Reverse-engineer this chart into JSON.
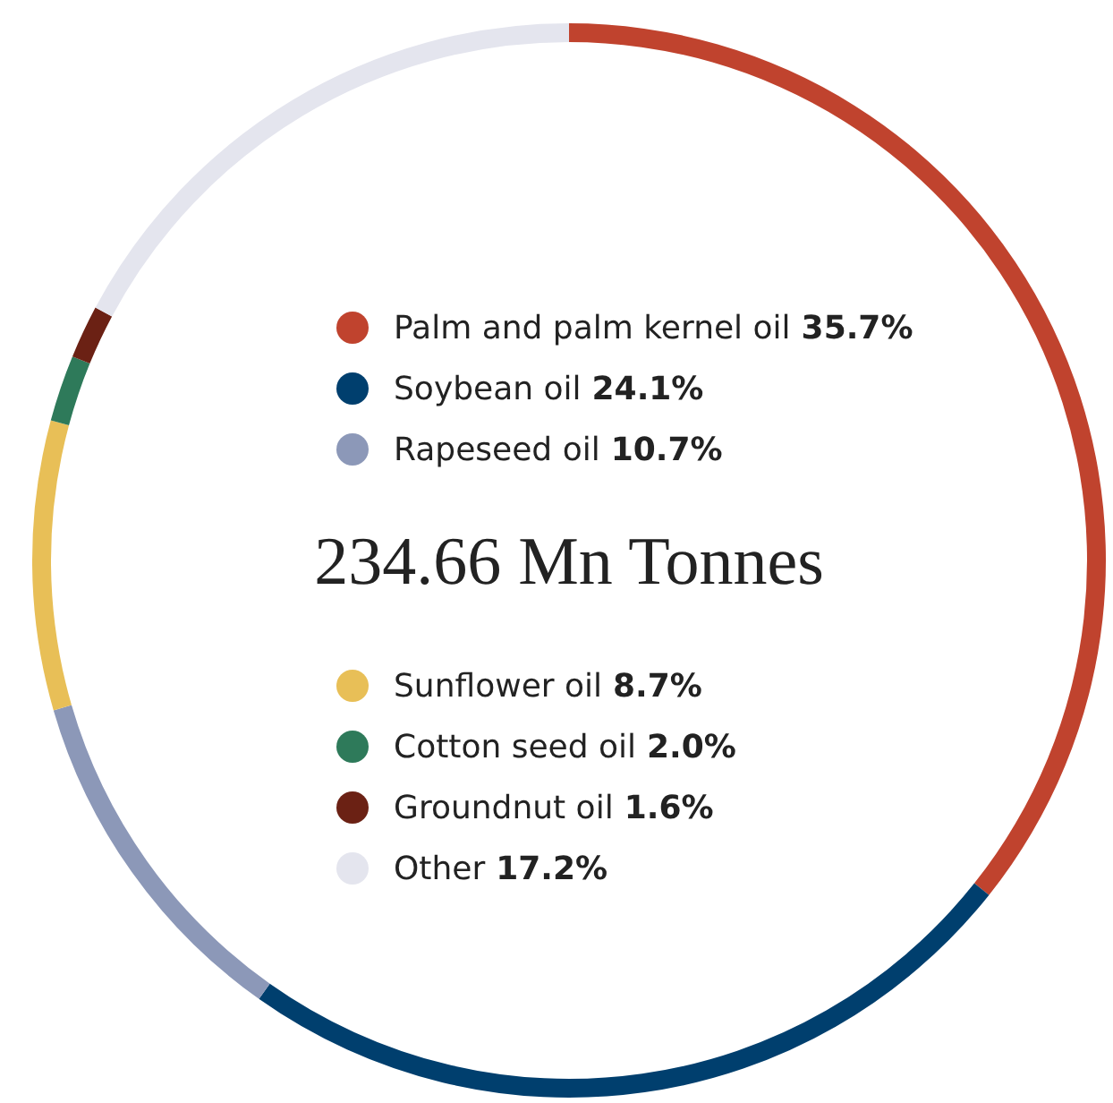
{
  "chart_data": {
    "type": "donut",
    "title": "234.66 Mn Tonnes",
    "categories": [
      "Palm and palm kernel oil",
      "Soybean oil",
      "Rapeseed oil",
      "Sunflower oil",
      "Cotton seed oil",
      "Groundnut oil",
      "Other"
    ],
    "values": [
      35.7,
      24.1,
      10.7,
      8.7,
      2.0,
      1.6,
      17.2
    ],
    "value_labels": [
      "35.7%",
      "24.1%",
      "10.7%",
      "8.7%",
      "2.0%",
      "1.6%",
      "17.2%"
    ],
    "colors": [
      "#c0432e",
      "#003f6e",
      "#8c98b8",
      "#e8bf57",
      "#2e7a5a",
      "#6b2114",
      "#e4e5ee"
    ],
    "legend": "center"
  }
}
